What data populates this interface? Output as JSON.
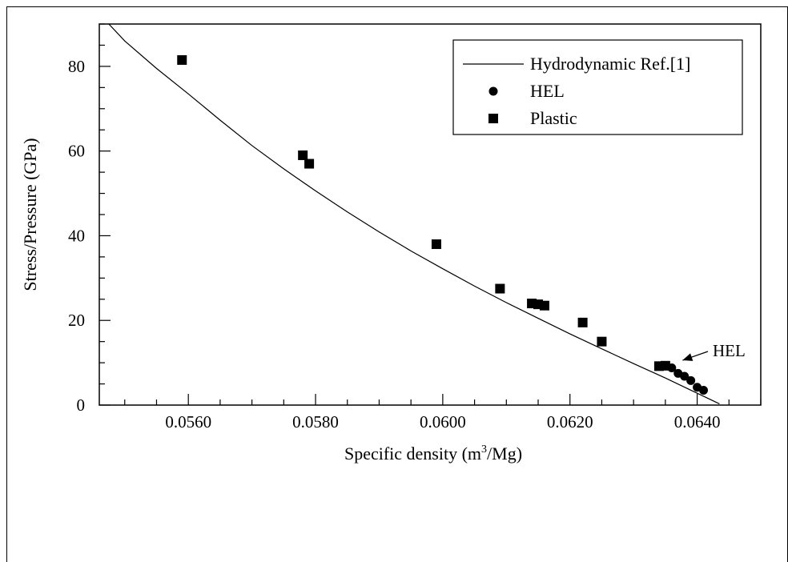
{
  "chart_data": {
    "type": "scatter",
    "title": "",
    "xlabel": "Specific density (m",
    "xlabel_sup": "3",
    "xlabel_tail": "/Mg)",
    "ylabel": "Stress/Pressure (GPa)",
    "xlim": [
      0.0546,
      0.065
    ],
    "ylim": [
      0,
      90
    ],
    "x_ticks": [
      0.056,
      0.058,
      0.06,
      0.062,
      0.064
    ],
    "x_tick_labels": [
      "0.0560",
      "0.0580",
      "0.0600",
      "0.0620",
      "0.0640"
    ],
    "y_ticks": [
      0,
      20,
      40,
      60,
      80
    ],
    "y_tick_labels": [
      "0",
      "20",
      "40",
      "60",
      "80"
    ],
    "grid": false,
    "legend_position": "top-right",
    "series": [
      {
        "name": "Hydrodynamic Ref.[1]",
        "kind": "line",
        "x": [
          0.05475,
          0.055,
          0.0555,
          0.056,
          0.0565,
          0.057,
          0.0575,
          0.058,
          0.0585,
          0.059,
          0.0595,
          0.06,
          0.0605,
          0.061,
          0.0615,
          0.062,
          0.0625,
          0.063,
          0.0635,
          0.064,
          0.06435
        ],
        "y": [
          90,
          86,
          79.5,
          73.5,
          67.3,
          61.3,
          55.8,
          50.6,
          45.6,
          40.9,
          36.4,
          32.2,
          28.1,
          24.2,
          20.5,
          16.8,
          13.3,
          9.8,
          6.4,
          2.8,
          0.3
        ]
      },
      {
        "name": "HEL",
        "kind": "circle",
        "x": [
          0.0636,
          0.0637,
          0.0638,
          0.0639,
          0.064,
          0.0641
        ],
        "y": [
          8.8,
          7.5,
          6.8,
          5.8,
          4.2,
          3.5
        ]
      },
      {
        "name": "Plastic",
        "kind": "square",
        "x": [
          0.0559,
          0.0578,
          0.0579,
          0.0599,
          0.0609,
          0.0614,
          0.0615,
          0.0616,
          0.0622,
          0.0625,
          0.0634,
          0.0635
        ],
        "y": [
          81.5,
          59,
          57,
          38,
          27.5,
          24,
          23.8,
          23.5,
          19.5,
          15,
          9.2,
          9.3
        ]
      }
    ],
    "annotations": [
      {
        "text": "HEL",
        "x": 0.06372,
        "y": 10.2
      }
    ]
  }
}
